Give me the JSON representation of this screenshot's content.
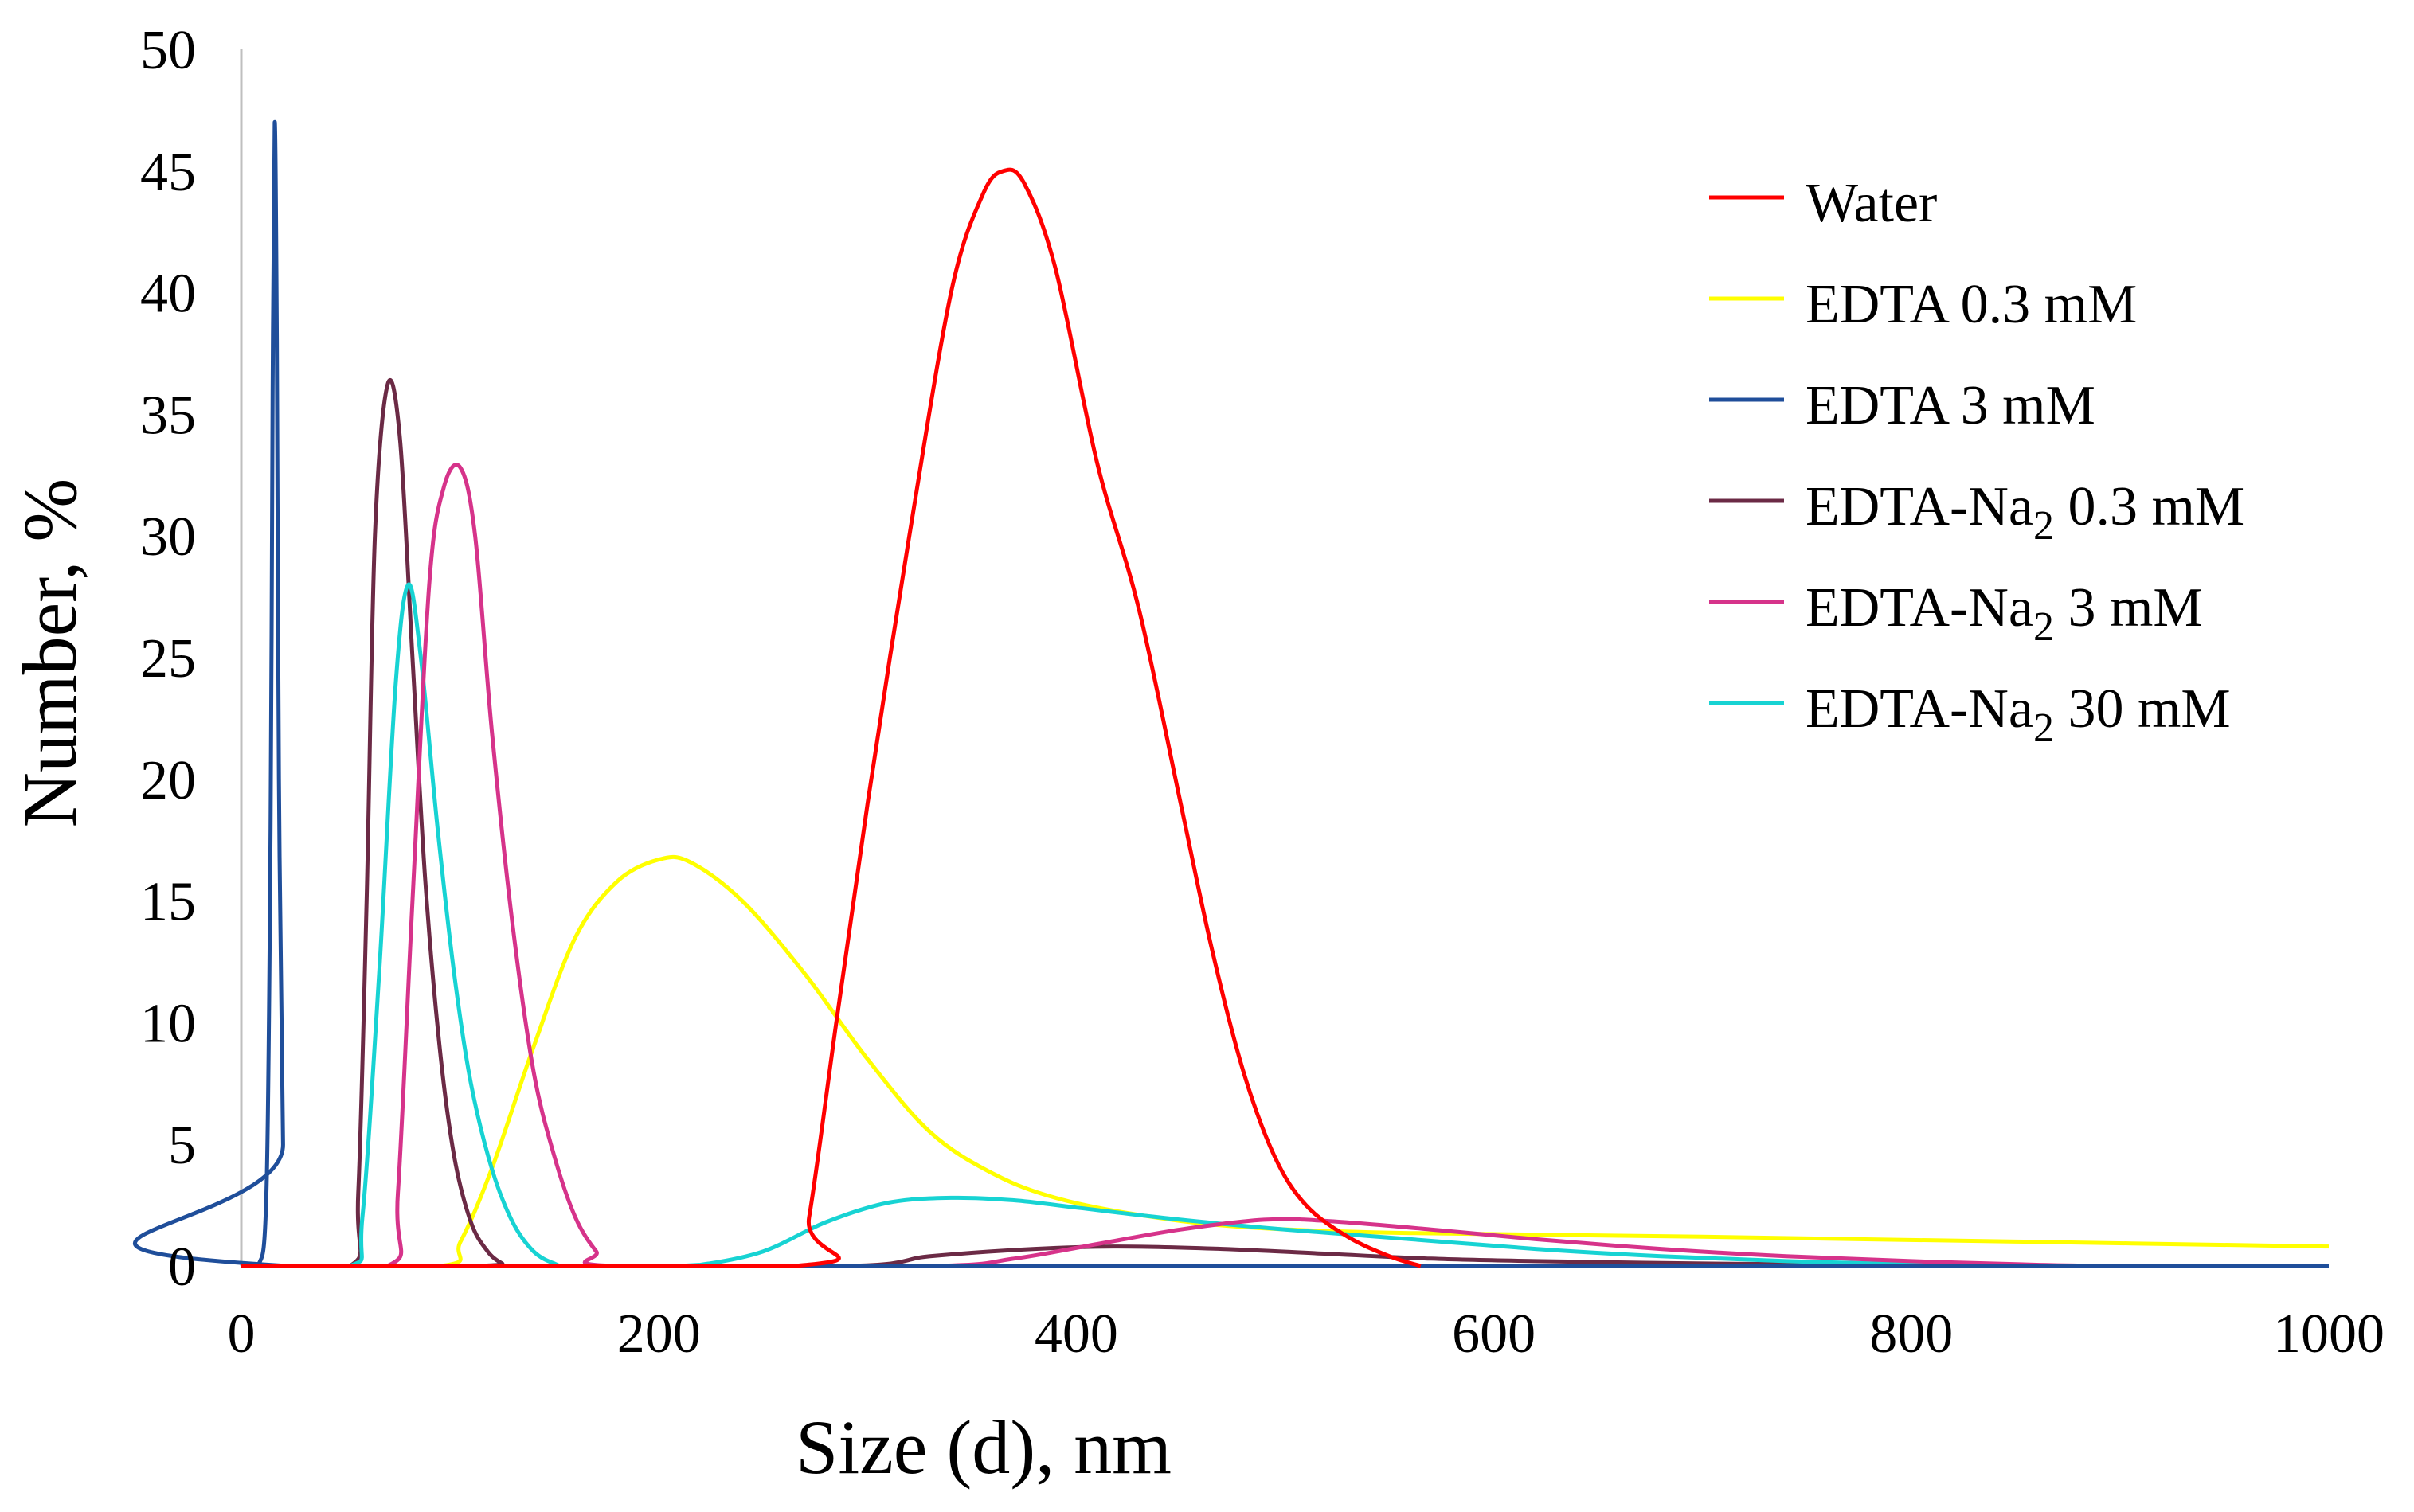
{
  "chart_data": {
    "type": "line",
    "title": "",
    "xlabel": "Size (d), nm",
    "ylabel": "Number, %",
    "xlim": [
      0,
      1000
    ],
    "ylim": [
      0,
      50
    ],
    "xticks": [
      "0",
      "200",
      "400",
      "600",
      "800",
      "1000"
    ],
    "yticks": [
      "0",
      "5",
      "10",
      "15",
      "20",
      "25",
      "30",
      "35",
      "40",
      "45",
      "50"
    ],
    "grid": false,
    "legend_position": "right",
    "series": [
      {
        "name": "Water",
        "label_main": "Water",
        "label_sub": "",
        "label_suffix": "",
        "color": "#ff0000",
        "points": [
          [
            0,
            0
          ],
          [
            265,
            0
          ],
          [
            272,
            2
          ],
          [
            285,
            10
          ],
          [
            300,
            19
          ],
          [
            320,
            30
          ],
          [
            340,
            40
          ],
          [
            355,
            44
          ],
          [
            365,
            45
          ],
          [
            375,
            44.5
          ],
          [
            390,
            41
          ],
          [
            410,
            33
          ],
          [
            430,
            27
          ],
          [
            450,
            19
          ],
          [
            465,
            13
          ],
          [
            480,
            8
          ],
          [
            495,
            4.5
          ],
          [
            510,
            2.5
          ],
          [
            530,
            1.2
          ],
          [
            550,
            0.4
          ],
          [
            565,
            0
          ]
        ]
      },
      {
        "name": "EDTA 0.3 mM",
        "label_main": "EDTA 0.3 mM",
        "label_sub": "",
        "label_suffix": "",
        "color": "#ffff00",
        "points": [
          [
            0,
            0
          ],
          [
            95,
            0
          ],
          [
            105,
            1
          ],
          [
            120,
            4
          ],
          [
            140,
            9
          ],
          [
            160,
            13.5
          ],
          [
            180,
            15.8
          ],
          [
            200,
            16.7
          ],
          [
            215,
            16.6
          ],
          [
            240,
            15
          ],
          [
            270,
            12
          ],
          [
            300,
            8.5
          ],
          [
            330,
            5.5
          ],
          [
            360,
            3.8
          ],
          [
            390,
            2.8
          ],
          [
            430,
            2.1
          ],
          [
            480,
            1.6
          ],
          [
            560,
            1.35
          ],
          [
            700,
            1.2
          ],
          [
            850,
            1.0
          ],
          [
            1000,
            0.8
          ]
        ]
      },
      {
        "name": "EDTA 3 mM",
        "label_main": "EDTA 3 mM",
        "label_sub": "",
        "label_suffix": "",
        "color": "#1f4e9a",
        "points": [
          [
            0,
            0
          ],
          [
            8,
            0
          ],
          [
            12,
            3
          ],
          [
            14,
            18
          ],
          [
            15,
            36
          ],
          [
            16,
            47
          ],
          [
            17,
            38
          ],
          [
            18,
            20
          ],
          [
            20,
            5
          ],
          [
            22,
            0
          ],
          [
            1000,
            0
          ]
        ]
      },
      {
        "name": "EDTA-Na2 0.3 mM",
        "label_main": "EDTA-Na",
        "label_sub": "2",
        "label_suffix": " 0.3 mM",
        "color": "#6b2a45",
        "points": [
          [
            0,
            0
          ],
          [
            52,
            0
          ],
          [
            56,
            3
          ],
          [
            60,
            15
          ],
          [
            64,
            30
          ],
          [
            70,
            36.2
          ],
          [
            76,
            34
          ],
          [
            82,
            25
          ],
          [
            88,
            16
          ],
          [
            95,
            9
          ],
          [
            102,
            4.5
          ],
          [
            110,
            1.8
          ],
          [
            118,
            0.6
          ],
          [
            125,
            0.1
          ],
          [
            130,
            0
          ],
          [
            290,
            0
          ],
          [
            330,
            0.4
          ],
          [
            380,
            0.7
          ],
          [
            420,
            0.8
          ],
          [
            470,
            0.7
          ],
          [
            520,
            0.5
          ],
          [
            570,
            0.3
          ],
          [
            620,
            0.2
          ],
          [
            700,
            0.1
          ],
          [
            780,
            0.05
          ],
          [
            850,
            0
          ],
          [
            1000,
            0
          ]
        ]
      },
      {
        "name": "EDTA-Na2 3 mM",
        "label_main": "EDTA-Na",
        "label_sub": "2",
        "label_suffix": " 3 mM",
        "color": "#d6338a",
        "points": [
          [
            0,
            0
          ],
          [
            70,
            0
          ],
          [
            75,
            3
          ],
          [
            82,
            15
          ],
          [
            90,
            28
          ],
          [
            97,
            32
          ],
          [
            105,
            32.8
          ],
          [
            112,
            30
          ],
          [
            120,
            22
          ],
          [
            130,
            14
          ],
          [
            140,
            8
          ],
          [
            150,
            4.5
          ],
          [
            160,
            2
          ],
          [
            170,
            0.6
          ],
          [
            178,
            0
          ],
          [
            330,
            0
          ],
          [
            370,
            0.3
          ],
          [
            410,
            0.9
          ],
          [
            450,
            1.5
          ],
          [
            490,
            1.9
          ],
          [
            520,
            1.85
          ],
          [
            570,
            1.5
          ],
          [
            620,
            1.1
          ],
          [
            680,
            0.7
          ],
          [
            740,
            0.4
          ],
          [
            800,
            0.2
          ],
          [
            860,
            0.05
          ],
          [
            900,
            0
          ],
          [
            1000,
            0
          ]
        ]
      },
      {
        "name": "EDTA-Na2 30 mM",
        "label_main": "EDTA-Na",
        "label_sub": "2",
        "label_suffix": " 30 mM",
        "color": "#17d3d3",
        "points": [
          [
            0,
            0
          ],
          [
            52,
            0
          ],
          [
            58,
            2
          ],
          [
            66,
            12
          ],
          [
            74,
            24
          ],
          [
            80,
            28
          ],
          [
            86,
            25
          ],
          [
            94,
            18
          ],
          [
            102,
            12
          ],
          [
            110,
            7.5
          ],
          [
            120,
            4
          ],
          [
            130,
            1.8
          ],
          [
            140,
            0.6
          ],
          [
            150,
            0.1
          ],
          [
            158,
            0
          ],
          [
            200,
            0
          ],
          [
            220,
            0.05
          ],
          [
            250,
            0.6
          ],
          [
            280,
            1.8
          ],
          [
            310,
            2.6
          ],
          [
            340,
            2.8
          ],
          [
            370,
            2.7
          ],
          [
            400,
            2.4
          ],
          [
            450,
            1.9
          ],
          [
            500,
            1.5
          ],
          [
            560,
            1.1
          ],
          [
            620,
            0.7
          ],
          [
            680,
            0.4
          ],
          [
            740,
            0.2
          ],
          [
            800,
            0.07
          ],
          [
            850,
            0
          ],
          [
            1000,
            0
          ]
        ]
      }
    ]
  }
}
